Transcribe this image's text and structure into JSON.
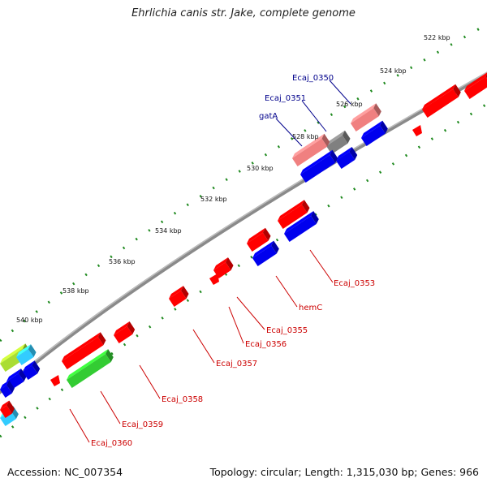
{
  "title": "Ehrlichia canis str. Jake, complete genome",
  "footer": {
    "accession": "Accession: NC_007354",
    "summary": "Topology: circular; Length: 1,315,030 bp; Genes: 966"
  },
  "colors": {
    "backbone": "#8a8a8a",
    "tick": "#1f8a1f",
    "forward_label": "#00008b",
    "reverse_label": "#cc0000",
    "red": "#ff0000",
    "blue": "#0000ee",
    "pink": "#f08080",
    "gray": "#808080",
    "green": "#33cc33",
    "cyan": "#33ccff",
    "yellow_green": "#aadd33"
  },
  "ticks": [
    "522 kbp",
    "524 kbp",
    "526 kbp",
    "528 kbp",
    "530 kbp",
    "532 kbp",
    "534 kbp",
    "536 kbp",
    "538 kbp",
    "540 kbp"
  ],
  "genes_forward": [
    "Ecaj_0350",
    "Ecaj_0351",
    "gatA"
  ],
  "genes_reverse": [
    "Ecaj_0353",
    "hemC",
    "Ecaj_0355",
    "Ecaj_0356",
    "Ecaj_0357",
    "Ecaj_0358",
    "Ecaj_0359",
    "Ecaj_0360"
  ]
}
